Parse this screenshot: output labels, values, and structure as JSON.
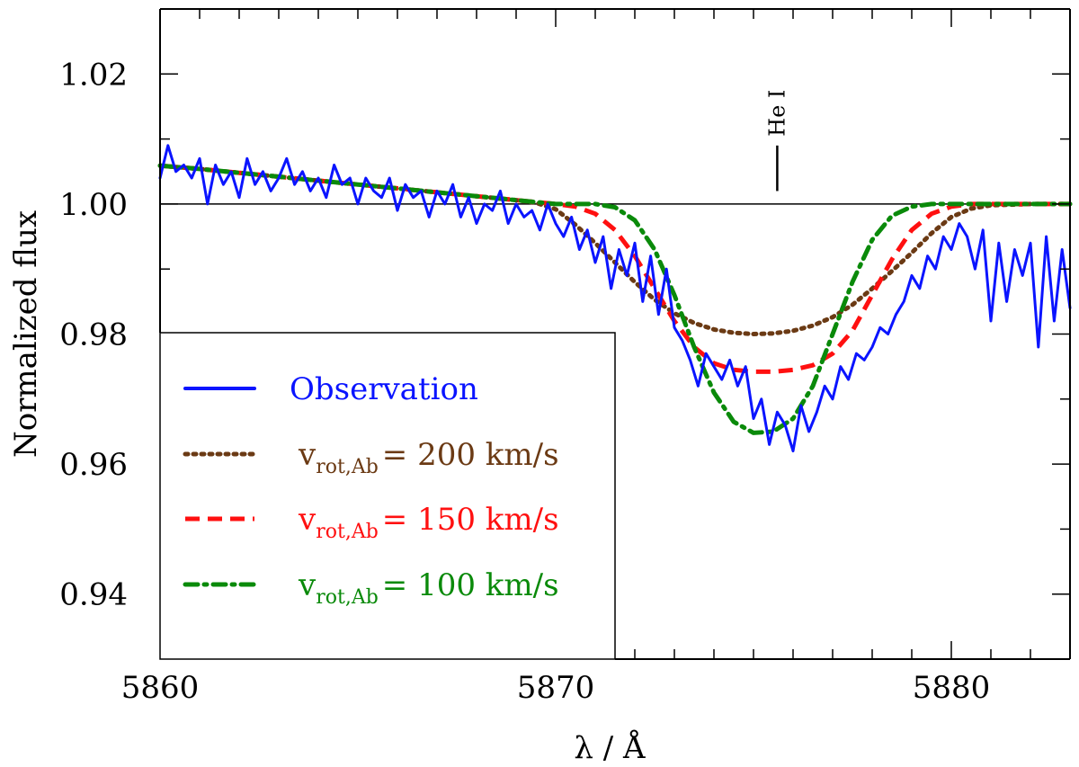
{
  "chart_data": {
    "type": "line",
    "title": "",
    "xlabel": "λ / Å",
    "ylabel": "Normalized flux",
    "xlim": [
      5860,
      5883
    ],
    "ylim": [
      0.93,
      1.03
    ],
    "xticks": [
      5860,
      5870,
      5880
    ],
    "xtick_labels": [
      "5860",
      "5870",
      "5880"
    ],
    "x_minor_step": 1,
    "yticks": [
      0.94,
      0.96,
      0.98,
      1.0,
      1.02
    ],
    "ytick_labels": [
      "0.94",
      "0.96",
      "0.98",
      "1.00",
      "1.02"
    ],
    "y_minor_step": 0.01,
    "reference_line": {
      "y": 1.0,
      "color": "#000000"
    },
    "annotation": {
      "text": "He I",
      "x": 5875.6,
      "y_from": 1.002,
      "y_to": 1.009
    },
    "legend": {
      "position": "bottom-left",
      "entries": [
        {
          "series": "obs",
          "label": "Observation",
          "color": "#0a14ff",
          "style": "solid"
        },
        {
          "series": "m200",
          "v": "v",
          "sub": "rot,Ab",
          "rest": "= 200 km/s",
          "color": "#6b3a14",
          "style": "dotted"
        },
        {
          "series": "m150",
          "v": "v",
          "sub": "rot,Ab",
          "rest": "= 150 km/s",
          "color": "#ff1010",
          "style": "dashed"
        },
        {
          "series": "m100",
          "v": "v",
          "sub": "rot,Ab",
          "rest": "= 100 km/s",
          "color": "#0a8a0a",
          "style": "dashdot"
        }
      ]
    },
    "series": [
      {
        "id": "obs",
        "name": "Observation",
        "color": "#0a14ff",
        "style": "solid",
        "x": [
          5860.0,
          5860.2,
          5860.4,
          5860.6,
          5860.8,
          5861.0,
          5861.2,
          5861.4,
          5861.6,
          5861.8,
          5862.0,
          5862.2,
          5862.4,
          5862.6,
          5862.8,
          5863.0,
          5863.2,
          5863.4,
          5863.6,
          5863.8,
          5864.0,
          5864.2,
          5864.4,
          5864.6,
          5864.8,
          5865.0,
          5865.2,
          5865.4,
          5865.6,
          5865.8,
          5866.0,
          5866.2,
          5866.4,
          5866.6,
          5866.8,
          5867.0,
          5867.2,
          5867.4,
          5867.6,
          5867.8,
          5868.0,
          5868.2,
          5868.4,
          5868.6,
          5868.8,
          5869.0,
          5869.2,
          5869.4,
          5869.6,
          5869.8,
          5870.0,
          5870.2,
          5870.4,
          5870.6,
          5870.8,
          5871.0,
          5871.2,
          5871.4,
          5871.6,
          5871.8,
          5872.0,
          5872.2,
          5872.4,
          5872.6,
          5872.8,
          5873.0,
          5873.2,
          5873.4,
          5873.6,
          5873.8,
          5874.0,
          5874.2,
          5874.4,
          5874.6,
          5874.8,
          5875.0,
          5875.2,
          5875.4,
          5875.6,
          5875.8,
          5876.0,
          5876.2,
          5876.4,
          5876.6,
          5876.8,
          5877.0,
          5877.2,
          5877.4,
          5877.6,
          5877.8,
          5878.0,
          5878.2,
          5878.4,
          5878.6,
          5878.8,
          5879.0,
          5879.2,
          5879.4,
          5879.6,
          5879.8,
          5880.0,
          5880.2,
          5880.4,
          5880.6,
          5880.8,
          5881.0,
          5881.2,
          5881.4,
          5881.6,
          5881.8,
          5882.0,
          5882.2,
          5882.4,
          5882.6,
          5882.8,
          5883.0
        ],
        "y": [
          1.004,
          1.009,
          1.005,
          1.006,
          1.004,
          1.007,
          1.0,
          1.006,
          1.003,
          1.005,
          1.001,
          1.007,
          1.003,
          1.005,
          1.002,
          1.004,
          1.007,
          1.003,
          1.005,
          1.002,
          1.004,
          1.001,
          1.006,
          1.003,
          1.004,
          1.0,
          1.004,
          1.002,
          1.001,
          1.004,
          0.999,
          1.003,
          1.001,
          1.002,
          0.998,
          1.002,
          1.0,
          1.003,
          0.998,
          1.001,
          0.997,
          1.0,
          0.999,
          1.002,
          0.997,
          1.0,
          0.998,
          0.999,
          0.996,
          1.0,
          0.997,
          0.995,
          0.998,
          0.993,
          0.996,
          0.991,
          0.995,
          0.987,
          0.993,
          0.989,
          0.994,
          0.985,
          0.992,
          0.983,
          0.99,
          0.981,
          0.979,
          0.976,
          0.972,
          0.977,
          0.975,
          0.973,
          0.976,
          0.972,
          0.975,
          0.967,
          0.97,
          0.963,
          0.968,
          0.966,
          0.962,
          0.969,
          0.965,
          0.968,
          0.972,
          0.97,
          0.975,
          0.973,
          0.977,
          0.976,
          0.978,
          0.981,
          0.98,
          0.983,
          0.985,
          0.989,
          0.987,
          0.992,
          0.99,
          0.995,
          0.993,
          0.997,
          0.995,
          0.99,
          0.996,
          0.982,
          0.994,
          0.985,
          0.993,
          0.989,
          0.994,
          0.978,
          0.995,
          0.982,
          0.993,
          0.984
        ]
      },
      {
        "id": "m200",
        "name": "v_rot,Ab = 200 km/s",
        "color": "#6b3a14",
        "style": "dotted",
        "x": [
          5860.0,
          5861.0,
          5862.0,
          5863.0,
          5864.0,
          5865.0,
          5866.0,
          5867.0,
          5868.0,
          5869.0,
          5869.5,
          5870.0,
          5870.5,
          5871.0,
          5871.5,
          5872.0,
          5872.5,
          5873.0,
          5873.5,
          5874.0,
          5874.5,
          5875.0,
          5875.5,
          5876.0,
          5876.5,
          5877.0,
          5877.5,
          5878.0,
          5878.5,
          5879.0,
          5879.5,
          5880.0,
          5880.5,
          5881.0,
          5882.0,
          5883.0
        ],
        "y": [
          1.0059,
          1.0054,
          1.0048,
          1.0042,
          1.0036,
          1.003,
          1.0024,
          1.0018,
          1.0012,
          1.0006,
          1.0002,
          0.9992,
          0.9968,
          0.994,
          0.991,
          0.988,
          0.9853,
          0.9832,
          0.9817,
          0.9807,
          0.9802,
          0.98,
          0.9801,
          0.9805,
          0.9813,
          0.9826,
          0.9845,
          0.987,
          0.9897,
          0.9925,
          0.9955,
          0.998,
          0.9993,
          0.9998,
          1.0,
          1.0
        ]
      },
      {
        "id": "m150",
        "name": "v_rot,Ab = 150 km/s",
        "color": "#ff1010",
        "style": "dashed",
        "x": [
          5860.0,
          5861.0,
          5862.0,
          5863.0,
          5864.0,
          5865.0,
          5866.0,
          5867.0,
          5868.0,
          5869.0,
          5870.0,
          5870.5,
          5871.0,
          5871.5,
          5872.0,
          5872.5,
          5873.0,
          5873.5,
          5874.0,
          5874.5,
          5875.0,
          5875.5,
          5876.0,
          5876.5,
          5877.0,
          5877.5,
          5878.0,
          5878.5,
          5879.0,
          5879.5,
          5880.0,
          5880.5,
          5881.0,
          5882.0,
          5883.0
        ],
        "y": [
          1.0059,
          1.0054,
          1.0048,
          1.0042,
          1.0036,
          1.003,
          1.0024,
          1.0018,
          1.0012,
          1.0006,
          1.0,
          0.9996,
          0.9985,
          0.996,
          0.992,
          0.987,
          0.982,
          0.978,
          0.9755,
          0.9745,
          0.9742,
          0.9742,
          0.9745,
          0.9752,
          0.977,
          0.9805,
          0.986,
          0.9915,
          0.996,
          0.9985,
          0.9996,
          1.0,
          1.0,
          1.0,
          1.0
        ]
      },
      {
        "id": "m100",
        "name": "v_rot,Ab = 100 km/s",
        "color": "#0a8a0a",
        "style": "dashdot",
        "x": [
          5860.0,
          5861.0,
          5862.0,
          5863.0,
          5864.0,
          5865.0,
          5866.0,
          5867.0,
          5868.0,
          5869.0,
          5870.0,
          5871.0,
          5871.5,
          5872.0,
          5872.5,
          5873.0,
          5873.5,
          5874.0,
          5874.5,
          5875.0,
          5875.5,
          5876.0,
          5876.5,
          5877.0,
          5877.5,
          5878.0,
          5878.5,
          5879.0,
          5879.5,
          5880.0,
          5881.0,
          5882.0,
          5883.0
        ],
        "y": [
          1.0059,
          1.0054,
          1.0048,
          1.0042,
          1.0036,
          1.003,
          1.0024,
          1.0018,
          1.0012,
          1.0006,
          1.0,
          1.0,
          0.9995,
          0.9975,
          0.993,
          0.986,
          0.978,
          0.971,
          0.9665,
          0.9648,
          0.965,
          0.967,
          0.972,
          0.98,
          0.988,
          0.9945,
          0.9982,
          0.9996,
          1.0,
          1.0,
          1.0,
          1.0,
          1.0
        ]
      }
    ]
  }
}
